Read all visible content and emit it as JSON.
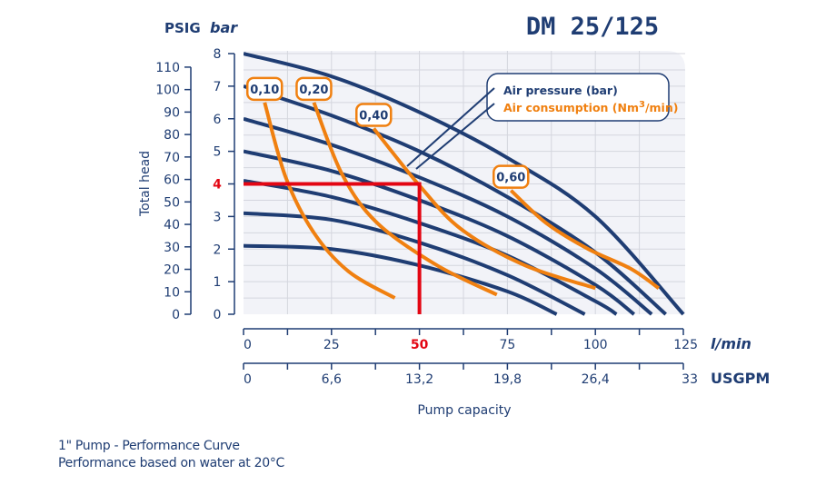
{
  "chart_data": {
    "type": "line",
    "title": "DM 25/125",
    "xlabel": "Pump capacity",
    "ylabel": "Total head",
    "x_primary": {
      "unit": "l/min",
      "range": [
        0,
        125
      ],
      "ticks": [
        "0",
        "25",
        "50",
        "75",
        "100",
        "125"
      ],
      "highlight": "50"
    },
    "x_secondary": {
      "unit": "USGPM",
      "range": [
        0,
        33
      ],
      "ticks": [
        "0",
        "6,6",
        "13,2",
        "19,8",
        "26,4",
        "33"
      ]
    },
    "y_primary": {
      "unit": "PSIG",
      "range": [
        0,
        110
      ],
      "ticks": [
        "0",
        "10",
        "20",
        "30",
        "40",
        "50",
        "60",
        "70",
        "80",
        "90",
        "100",
        "110"
      ]
    },
    "y_secondary": {
      "unit": "bar",
      "range": [
        0,
        8
      ],
      "ticks": [
        "0",
        "1",
        "2",
        "3",
        "4",
        "5",
        "6",
        "7",
        "8"
      ],
      "highlight": "4"
    },
    "grid": true,
    "legend": {
      "position": "top-right",
      "entries": [
        {
          "label": "Air pressure (bar)",
          "color": "#1f3d73"
        },
        {
          "label": "Air consumption (Nm",
          "sup": "3",
          "suffix": "/min)",
          "color": "#f08010"
        }
      ]
    },
    "pressure_series": [
      {
        "name": "p8",
        "points": [
          [
            0,
            8.0
          ],
          [
            25,
            7.3
          ],
          [
            50,
            6.2
          ],
          [
            75,
            4.8
          ],
          [
            100,
            3.0
          ],
          [
            125,
            0
          ]
        ]
      },
      {
        "name": "p7",
        "points": [
          [
            0,
            7.0
          ],
          [
            25,
            6.1
          ],
          [
            50,
            5.0
          ],
          [
            75,
            3.6
          ],
          [
            100,
            1.9
          ],
          [
            120,
            0
          ]
        ]
      },
      {
        "name": "p6",
        "points": [
          [
            0,
            6.0
          ],
          [
            25,
            5.2
          ],
          [
            50,
            4.2
          ],
          [
            75,
            3.0
          ],
          [
            100,
            1.4
          ],
          [
            116,
            0
          ]
        ]
      },
      {
        "name": "p5",
        "points": [
          [
            0,
            5.0
          ],
          [
            25,
            4.4
          ],
          [
            50,
            3.5
          ],
          [
            75,
            2.4
          ],
          [
            100,
            0.9
          ],
          [
            111,
            0
          ]
        ]
      },
      {
        "name": "p4",
        "points": [
          [
            0,
            4.1
          ],
          [
            25,
            3.6
          ],
          [
            50,
            2.8
          ],
          [
            75,
            1.8
          ],
          [
            100,
            0.4
          ],
          [
            106,
            0
          ]
        ]
      },
      {
        "name": "p3",
        "points": [
          [
            0,
            3.1
          ],
          [
            25,
            2.9
          ],
          [
            50,
            2.2
          ],
          [
            75,
            1.2
          ],
          [
            97,
            0
          ]
        ]
      },
      {
        "name": "p2",
        "points": [
          [
            0,
            2.1
          ],
          [
            25,
            2.0
          ],
          [
            50,
            1.5
          ],
          [
            75,
            0.7
          ],
          [
            89,
            0
          ]
        ]
      }
    ],
    "consumption_series": [
      {
        "name": "0,10",
        "points": [
          [
            6,
            6.5
          ],
          [
            12,
            4.2
          ],
          [
            20,
            2.5
          ],
          [
            30,
            1.3
          ],
          [
            43,
            0.5
          ]
        ]
      },
      {
        "name": "0,20",
        "points": [
          [
            20,
            6.5
          ],
          [
            28,
            4.3
          ],
          [
            38,
            2.8
          ],
          [
            55,
            1.5
          ],
          [
            72,
            0.6
          ]
        ]
      },
      {
        "name": "0,40",
        "points": [
          [
            37,
            5.7
          ],
          [
            50,
            3.95
          ],
          [
            62,
            2.6
          ],
          [
            80,
            1.5
          ],
          [
            100,
            0.8
          ]
        ]
      },
      {
        "name": "0,60",
        "points": [
          [
            76,
            3.8
          ],
          [
            86,
            2.8
          ],
          [
            98,
            2.0
          ],
          [
            110,
            1.4
          ],
          [
            118,
            0.8
          ]
        ]
      }
    ],
    "operating_point": {
      "flow": 50,
      "head_bar": 4
    }
  },
  "footer": {
    "line1": "1\" Pump - Performance Curve",
    "line2": "Performance based on water at 20°C"
  },
  "colors": {
    "navy": "#1f3d73",
    "orange": "#f08010",
    "red": "#e30613",
    "plot_bg": "#f2f3f8",
    "grid": "#d4d6de"
  }
}
